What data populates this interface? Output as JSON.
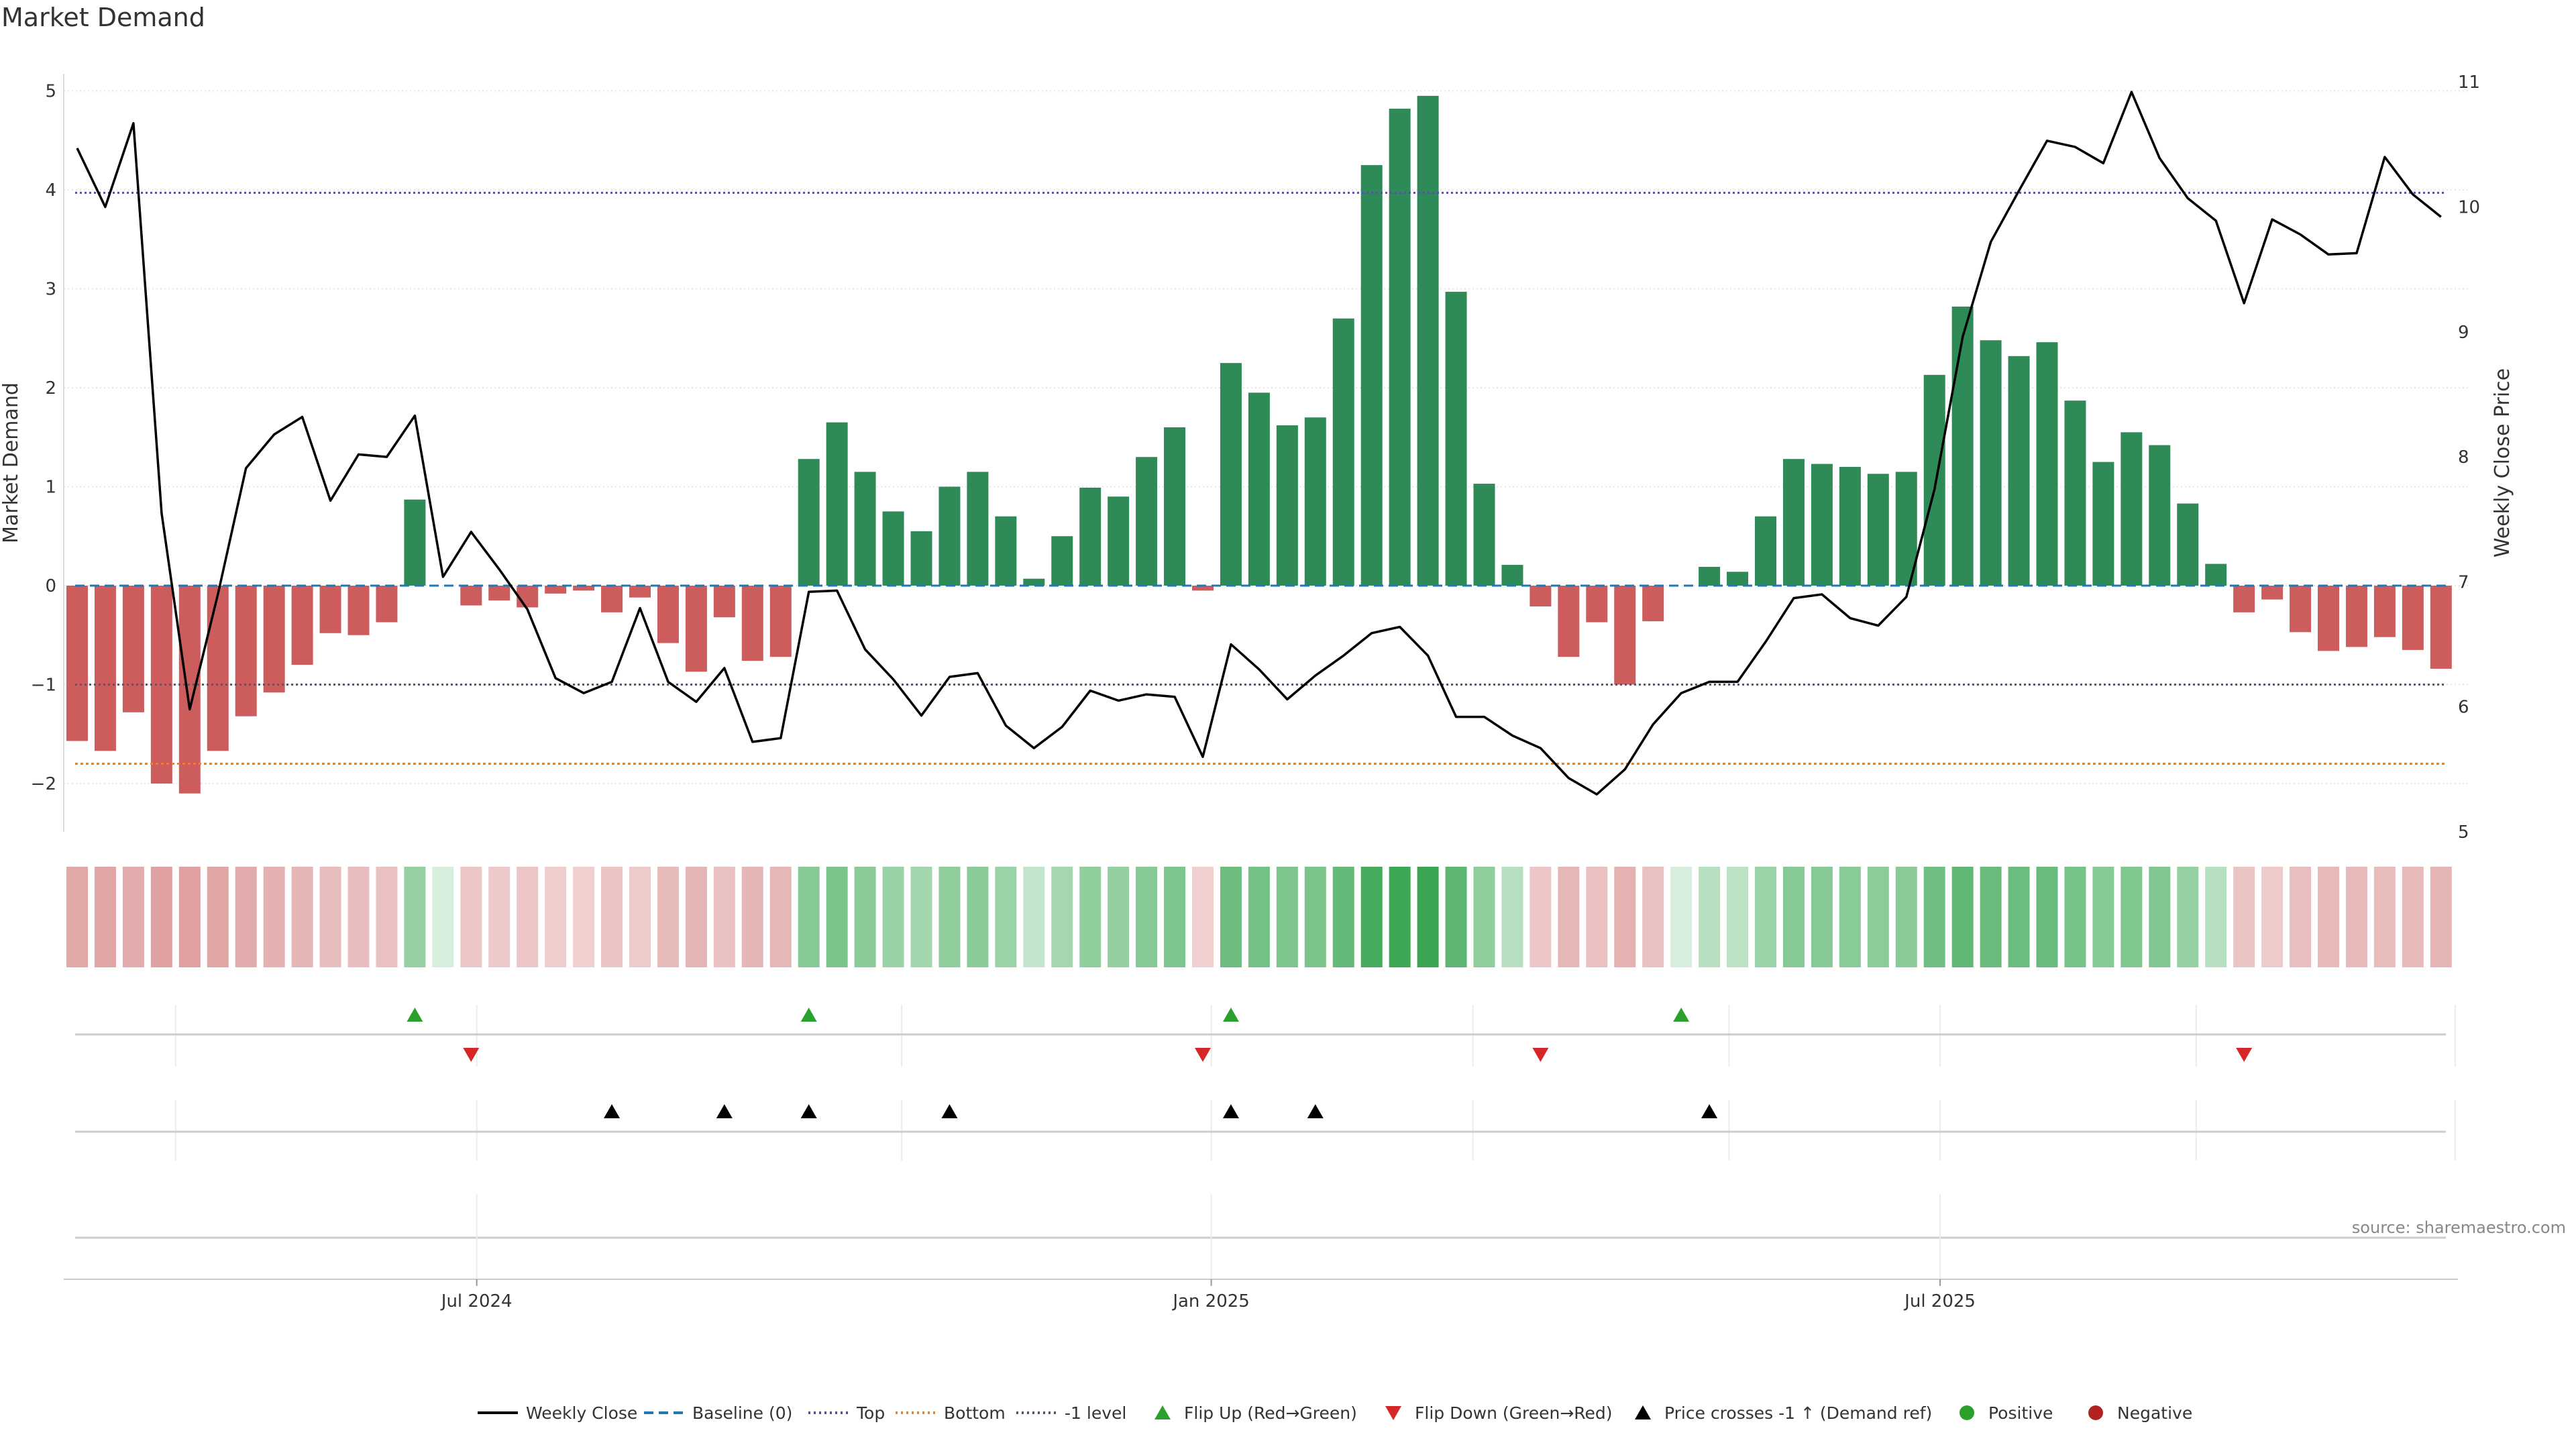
{
  "page_title": "Market Demand",
  "source_note": "source: sharemaestro.com",
  "colors": {
    "positive_bar": "#2e8b57",
    "negative_bar": "#cd5c5c",
    "close_line": "#000000",
    "baseline": "#1f77b4",
    "top": "#5b4da8",
    "bottom": "#ff7f0e",
    "minus_one": "#555577",
    "flip_up": "#2ca02c",
    "flip_down": "#d62728",
    "cross": "#000000",
    "positive_dot": "#2ca02c",
    "negative_dot": "#b22222"
  },
  "chart_data": {
    "type": "bar",
    "title": "Market Demand",
    "ylabel": "Market Demand",
    "y2label": "Weekly Close Price",
    "ylim": [
      -2.5,
      5.3
    ],
    "y2lim": [
      5,
      11
    ],
    "yticks": [
      -2,
      -1,
      0,
      1,
      2,
      3,
      4,
      5
    ],
    "y2ticks": [
      5,
      6,
      7,
      8,
      9,
      10,
      11
    ],
    "xticks": [
      {
        "label": "Jul 2024",
        "week": 14.2
      },
      {
        "label": "Jan 2025",
        "week": 40.3
      },
      {
        "label": "Jul 2025",
        "week": 66.2
      }
    ],
    "series": [
      {
        "name": "Market Demand",
        "values": [
          -1.57,
          -1.67,
          -1.28,
          -2.0,
          -2.1,
          -1.67,
          -1.32,
          -1.08,
          -0.8,
          -0.48,
          -0.5,
          -0.37,
          0.87,
          0.0,
          -0.2,
          -0.15,
          -0.22,
          -0.08,
          -0.05,
          -0.27,
          -0.12,
          -0.58,
          -0.87,
          -0.32,
          -0.76,
          -0.72,
          1.28,
          1.65,
          1.15,
          0.75,
          0.55,
          1.0,
          1.15,
          0.7,
          0.07,
          0.5,
          0.99,
          0.9,
          1.3,
          1.6,
          -0.05,
          2.25,
          1.95,
          1.62,
          1.7,
          2.7,
          4.25,
          4.82,
          4.95,
          2.97,
          1.03,
          0.21,
          -0.21,
          -0.72,
          -0.37,
          -1.0,
          -0.36,
          0.0,
          0.19,
          0.14,
          0.7,
          1.28,
          1.23,
          1.2,
          1.13,
          1.15,
          2.13,
          2.82,
          2.48,
          2.32,
          2.46,
          1.87,
          1.25,
          1.55,
          1.42,
          0.83,
          0.22,
          -0.27,
          -0.14,
          -0.47,
          -0.66,
          -0.62,
          -0.52,
          -0.65,
          -0.84
        ]
      },
      {
        "name": "Weekly Close",
        "values": [
          10.47,
          10.0,
          10.67,
          7.55,
          5.98,
          6.9,
          7.91,
          8.18,
          8.32,
          7.65,
          8.02,
          8.0,
          8.33,
          7.04,
          7.4,
          7.1,
          6.78,
          6.23,
          6.11,
          6.2,
          6.79,
          6.2,
          6.04,
          6.31,
          5.72,
          5.75,
          6.92,
          6.93,
          6.46,
          6.22,
          5.93,
          6.24,
          6.27,
          5.85,
          5.67,
          5.84,
          6.13,
          6.05,
          6.1,
          6.08,
          5.6,
          6.5,
          6.3,
          6.06,
          6.25,
          6.41,
          6.59,
          6.64,
          6.41,
          5.92,
          5.92,
          5.77,
          5.67,
          5.43,
          5.3,
          5.5,
          5.86,
          6.11,
          6.2,
          6.2,
          6.52,
          6.87,
          6.9,
          6.71,
          6.65,
          6.88,
          7.74,
          8.96,
          9.72,
          10.13,
          10.53,
          10.48,
          10.35,
          10.92,
          10.39,
          10.07,
          9.89,
          9.23,
          9.9,
          9.78,
          9.62,
          9.63,
          10.4,
          10.1,
          9.92
        ]
      }
    ],
    "reference_lines": [
      {
        "name": "Baseline (0)",
        "value": 0
      },
      {
        "name": "Top",
        "value": 3.97
      },
      {
        "name": "Bottom",
        "value": -1.8
      },
      {
        "name": "-1 level",
        "value": -1.0
      }
    ],
    "flip_up_weeks": [
      12,
      26,
      41,
      57
    ],
    "flip_down_weeks": [
      14,
      40,
      52,
      77
    ],
    "price_cross_weeks": [
      19,
      23,
      26,
      31,
      41,
      44,
      58
    ],
    "legend": [
      {
        "label": "Weekly Close",
        "kind": "line"
      },
      {
        "label": "Baseline (0)",
        "kind": "dash-blue"
      },
      {
        "label": "Top",
        "kind": "dot-purple"
      },
      {
        "label": "Bottom",
        "kind": "dot-orange"
      },
      {
        "label": "-1 level",
        "kind": "dot-gray"
      },
      {
        "label": "Flip Up (Red→Green)",
        "kind": "tri-up-green"
      },
      {
        "label": "Flip Down (Green→Red)",
        "kind": "tri-down-red"
      },
      {
        "label": "Price crosses -1 ↑ (Demand ref)",
        "kind": "tri-up-black"
      },
      {
        "label": "Positive",
        "kind": "dot-green"
      },
      {
        "label": "Negative",
        "kind": "dot-red"
      }
    ]
  }
}
